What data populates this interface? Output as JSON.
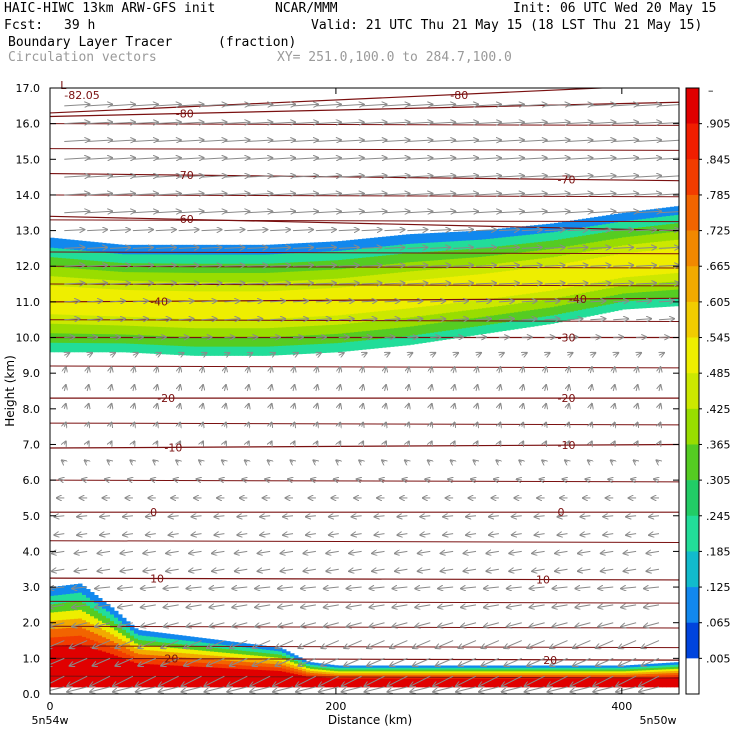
{
  "header": {
    "model": "HAIC-HIWC 13km ARW-GFS init",
    "org": "NCAR/MMM",
    "init": "Init: 06 UTC Wed 20 May 15",
    "fcst_label": "Fcst:",
    "fcst_value": "39 h",
    "valid": "Valid: 21 UTC Thu 21 May 15 (18 LST Thu 21 May 15)",
    "field_name": "Boundary Layer Tracer",
    "field_units": "(fraction)",
    "overlay_name": "Circulation vectors",
    "xsect": "XY= 251.0,100.0 to 284.7,100.0"
  },
  "chart_data": {
    "type": "heatmap",
    "title": "Boundary Layer Tracer (fraction)",
    "xlabel": "Distance (km)",
    "ylabel": "Height (km)",
    "xlim": [
      0,
      440
    ],
    "ylim": [
      0,
      17
    ],
    "x_ticks": [
      0,
      200,
      400
    ],
    "y_ticks": [
      "0.0",
      "1.0",
      "2.0",
      "3.0",
      "4.0",
      "5.0",
      "6.0",
      "7.0",
      "8.0",
      "9.0",
      "10.0",
      "11.0",
      "12.0",
      "13.0",
      "14.0",
      "15.0",
      "16.0",
      "17.0"
    ],
    "x_end_labels": {
      "left": "5n54w",
      "right": "5n50w"
    },
    "colorbar": {
      "labels": [
        ".905",
        ".845",
        ".785",
        ".725",
        ".665",
        ".605",
        ".545",
        ".485",
        ".425",
        ".365",
        ".305",
        ".245",
        ".185",
        ".125",
        ".065",
        ".005"
      ],
      "colors": [
        "#e00000",
        "#f01e00",
        "#f23c00",
        "#f26400",
        "#f28800",
        "#f2aa00",
        "#f2cc00",
        "#eeee00",
        "#cce800",
        "#99dd00",
        "#55cc22",
        "#22cc66",
        "#22dd99",
        "#11bbcc",
        "#1188ee",
        "#0044dd",
        "#ffffff"
      ]
    },
    "tracer_layers": [
      {
        "name": "upper-outflow",
        "x": [
          0,
          50,
          100,
          150,
          200,
          250,
          300,
          350,
          400,
          440
        ],
        "bottom": [
          9.6,
          9.6,
          9.5,
          9.5,
          9.6,
          9.8,
          10.1,
          10.4,
          10.8,
          10.9
        ],
        "top": [
          12.8,
          12.6,
          12.6,
          12.6,
          12.7,
          12.9,
          13.0,
          13.2,
          13.5,
          13.7
        ],
        "peak": 0.5
      },
      {
        "name": "boundary-layer",
        "x": [
          0,
          20,
          40,
          60,
          80,
          100,
          140,
          160,
          180,
          200,
          250,
          300,
          350,
          400,
          440
        ],
        "bottom": [
          0.2,
          0.2,
          0.2,
          0.2,
          0.2,
          0.2,
          0.2,
          0.2,
          0.2,
          0.2,
          0.2,
          0.2,
          0.2,
          0.2,
          0.2
        ],
        "top": [
          3.0,
          3.1,
          2.5,
          1.8,
          1.7,
          1.6,
          1.4,
          1.3,
          0.9,
          0.8,
          0.8,
          0.8,
          0.8,
          0.8,
          0.9
        ],
        "peak": 0.95
      }
    ],
    "contours": [
      {
        "value": "-82.05",
        "label": "-82.05",
        "low_marker": "L",
        "y": [
          16.8,
          16.8
        ],
        "label_x": [
          10
        ]
      },
      {
        "value": -80,
        "label": "-80",
        "y": [
          16.3,
          17.1
        ],
        "label_x": [
          280
        ]
      },
      {
        "value": -80,
        "label": "-80",
        "y": [
          16.2,
          16.6
        ],
        "label_x": [
          88
        ]
      },
      {
        "value": -70,
        "label": "-70",
        "y": [
          14.6,
          14.4
        ],
        "label_x": [
          88,
          355
        ]
      },
      {
        "value": -60,
        "label": "-60",
        "y": [
          13.4,
          13.0
        ],
        "label_x": [
          88
        ]
      },
      {
        "value": -40,
        "label": "-40",
        "y": [
          11.0,
          11.1
        ],
        "label_x": [
          70,
          363
        ]
      },
      {
        "value": -30,
        "label": "-30",
        "y": [
          10.0,
          10.0
        ],
        "label_x": [
          355
        ]
      },
      {
        "value": -20,
        "label": "-20",
        "y": [
          8.3,
          8.3
        ],
        "label_x": [
          75,
          355
        ]
      },
      {
        "value": -10,
        "label": "-10",
        "y": [
          6.9,
          7.0
        ],
        "label_x": [
          80,
          355
        ]
      },
      {
        "value": 0,
        "label": "0",
        "y": [
          5.1,
          5.1
        ],
        "label_x": [
          70,
          355
        ]
      },
      {
        "value": 10,
        "label": "10",
        "y": [
          3.25,
          3.2
        ],
        "label_x": [
          70,
          340
        ]
      },
      {
        "value": 20,
        "label": "20",
        "y": [
          1.0,
          0.95
        ],
        "label_x": [
          80,
          345
        ]
      }
    ],
    "extra_temp_lines": [
      16.0,
      15.3,
      14.0,
      13.3,
      12.4,
      12.0,
      11.5,
      10.5,
      9.2,
      7.6,
      6.0,
      4.3,
      2.6,
      1.9,
      1.35,
      0.5
    ],
    "vectors": {
      "rows": [
        16.5,
        16.0,
        15.5,
        15.0,
        14.5,
        14.0,
        13.5,
        13.0,
        12.5,
        12.0,
        11.5,
        11.0,
        10.5,
        10.0,
        9.5,
        9.0,
        8.5,
        8.0,
        7.5,
        7.0,
        6.5,
        6.0,
        5.5,
        5.0,
        4.5,
        4.0,
        3.5,
        3.0,
        2.5,
        2.0,
        1.5,
        1.0,
        0.5,
        0.2
      ],
      "u": [
        5,
        5,
        5,
        5,
        5,
        5,
        5,
        4,
        4,
        4,
        4,
        3,
        3,
        2,
        1,
        0.3,
        0.3,
        0.3,
        0.3,
        0.3,
        -0.5,
        -1,
        -1.5,
        -2,
        -2,
        -2.5,
        -2.5,
        -3,
        -3,
        -3,
        -3.5,
        -3.5,
        -4,
        -4
      ],
      "w": [
        0.3,
        0.3,
        0.3,
        0.3,
        0.3,
        0.3,
        0.3,
        0.2,
        0.2,
        0.2,
        0.2,
        0.2,
        0.2,
        0.1,
        0.5,
        1.2,
        1.2,
        1.0,
        0.8,
        0.6,
        0.4,
        0.2,
        0,
        -0.2,
        -0.3,
        -0.4,
        -0.4,
        -0.3,
        -0.5,
        -0.8,
        -1.5,
        -1.5,
        -2,
        -1
      ]
    }
  }
}
